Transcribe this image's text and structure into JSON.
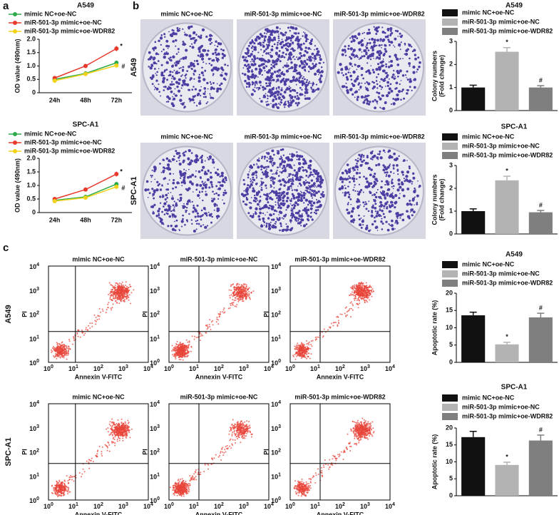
{
  "panel_labels": [
    "a",
    "b",
    "c"
  ],
  "colonies": {
    "rows": [
      {
        "label": "A549",
        "titles": [
          "mimic NC+oe-NC",
          "miR-501-3p mimic+oe-NC",
          "miR-501-3p mimic+oe-WDR82"
        ]
      },
      {
        "label": "SPC-A1",
        "titles": [
          "mimic NC+oe-NC",
          "miR-501-3p mimic+oe-NC",
          "miR-501-3p mimic+oe-WDR82"
        ]
      }
    ]
  },
  "flow": {
    "rows": [
      {
        "label": "A549",
        "titles": [
          "mimic NC+oe-NC",
          "miR-501-3p mimic+oe-NC",
          "miR-501-3p mimic+oe-WDR82"
        ]
      },
      {
        "label": "SPC-A1",
        "titles": [
          "mimic NC+oe-NC",
          "miR-501-3p mimic+oe-NC",
          "miR-501-3p mimic+oe-WDR82"
        ]
      }
    ],
    "x_label": "Annexin V-FITC",
    "y_label": "PI",
    "ticks": [
      {
        "base": "10",
        "exponent": "0"
      },
      {
        "base": "10",
        "exponent": "1"
      },
      {
        "base": "10",
        "exponent": "2"
      },
      {
        "base": "10",
        "exponent": "3"
      },
      {
        "base": "10",
        "exponent": "4"
      }
    ]
  },
  "chart_data": [
    {
      "type": "line",
      "title": "A549",
      "ylabel": "OD value (490nm)",
      "categories": [
        "24h",
        "48h",
        "72h"
      ],
      "ylim": [
        0,
        2
      ],
      "yticks": [
        0,
        {
          "value": 0.5,
          "label": "0.5"
        },
        {
          "value": 1,
          "label": "1.0"
        },
        {
          "value": 1.5,
          "label": "1.5"
        },
        {
          "value": 2,
          "label": "2.0"
        }
      ],
      "series": [
        {
          "name": "mimic NC+oe-NC",
          "color": "#2eaa4a",
          "values": [
            0.5,
            0.72,
            1.12
          ],
          "errors": [
            0.04,
            0.05,
            0.08
          ],
          "point_labels": [
            null,
            null,
            null
          ]
        },
        {
          "name": "miR-501-3p mimic+oe-NC",
          "color": "#e8392b",
          "values": [
            0.55,
            1.0,
            1.65
          ],
          "errors": [
            0.04,
            0.07,
            0.1
          ],
          "point_labels": [
            null,
            null,
            "*"
          ]
        },
        {
          "name": "miR-501-3p mimic+oe-WDR82",
          "color": "#f2d21b",
          "values": [
            0.45,
            0.7,
            1.02
          ],
          "errors": [
            0.03,
            0.05,
            0.07
          ],
          "point_labels": [
            null,
            null,
            "#"
          ]
        }
      ]
    },
    {
      "type": "line",
      "title": "SPC-A1",
      "ylabel": "OD value (490nm)",
      "categories": [
        "24h",
        "48h",
        "72h"
      ],
      "ylim": [
        0,
        2
      ],
      "yticks": [
        0,
        {
          "value": 0.5,
          "label": "0.5"
        },
        {
          "value": 1,
          "label": "1.0"
        },
        {
          "value": 1.5,
          "label": "1.5"
        },
        {
          "value": 2,
          "label": "2.0"
        }
      ],
      "series": [
        {
          "name": "mimic NC+oe-NC",
          "color": "#2eaa4a",
          "values": [
            0.45,
            0.58,
            1.05
          ],
          "errors": [
            0.03,
            0.04,
            0.07
          ],
          "point_labels": [
            null,
            null,
            null
          ]
        },
        {
          "name": "miR-501-3p mimic+oe-NC",
          "color": "#e8392b",
          "values": [
            0.5,
            0.85,
            1.42
          ],
          "errors": [
            0.04,
            0.06,
            0.09
          ],
          "point_labels": [
            null,
            null,
            "*"
          ]
        },
        {
          "name": "miR-501-3p mimic+oe-WDR82",
          "color": "#f2d21b",
          "values": [
            0.42,
            0.55,
            0.95
          ],
          "errors": [
            0.03,
            0.04,
            0.06
          ],
          "point_labels": [
            null,
            null,
            "#"
          ]
        }
      ]
    },
    {
      "type": "bar",
      "title": "A549",
      "ylabel": [
        "Colony numbers",
        "(Fold change)"
      ],
      "categories": [
        "mimic NC+oe-NC",
        "miR-501-3p mimic+oe-NC",
        "miR-501-3p mimic+oe-WDR82"
      ],
      "colors": [
        "#111111",
        "#b3b3b3",
        "#7f7f7f"
      ],
      "values": [
        1.0,
        2.55,
        1.0
      ],
      "errors": [
        0.1,
        0.18,
        0.08
      ],
      "annotations": [
        null,
        "*",
        "#"
      ],
      "ylim": [
        0,
        3
      ],
      "yticks": [
        0,
        1,
        2,
        3
      ]
    },
    {
      "type": "bar",
      "title": "SPC-A1",
      "ylabel": [
        "Colony numbers",
        "(Fold change)"
      ],
      "categories": [
        "mimic NC+oe-NC",
        "miR-501-3p mimic+oe-NC",
        "miR-501-3p mimic+oe-WDR82"
      ],
      "colors": [
        "#111111",
        "#b3b3b3",
        "#7f7f7f"
      ],
      "values": [
        1.0,
        2.35,
        0.95
      ],
      "errors": [
        0.1,
        0.18,
        0.08
      ],
      "annotations": [
        null,
        "*",
        "#"
      ],
      "ylim": [
        0,
        3
      ],
      "yticks": [
        0,
        1,
        2,
        3
      ]
    },
    {
      "type": "bar",
      "title": "A549",
      "ylabel": "Apoptotic rate (%)",
      "categories": [
        "mimic NC+oe-NC",
        "miR-501-3p mimic+oe-NC",
        "miR-501-3p mimic+oe-WDR82"
      ],
      "colors": [
        "#111111",
        "#b3b3b3",
        "#7f7f7f"
      ],
      "values": [
        13.6,
        5.2,
        13.0
      ],
      "errors": [
        0.9,
        0.6,
        1.2
      ],
      "annotations": [
        null,
        "*",
        "#"
      ],
      "ylim": [
        0,
        20
      ],
      "yticks": [
        0,
        5,
        10,
        15,
        20
      ]
    },
    {
      "type": "bar",
      "title": "SPC-A1",
      "ylabel": "Apoptotic rate (%)",
      "categories": [
        "mimic NC+oe-NC",
        "miR-501-3p mimic+oe-NC",
        "miR-501-3p mimic+oe-WDR82"
      ],
      "colors": [
        "#111111",
        "#b3b3b3",
        "#7f7f7f"
      ],
      "values": [
        17.3,
        9.1,
        16.3
      ],
      "errors": [
        1.7,
        0.8,
        1.6
      ],
      "annotations": [
        null,
        "*",
        "#"
      ],
      "ylim": [
        0,
        20
      ],
      "yticks": [
        0,
        5,
        10,
        15,
        20
      ]
    }
  ]
}
